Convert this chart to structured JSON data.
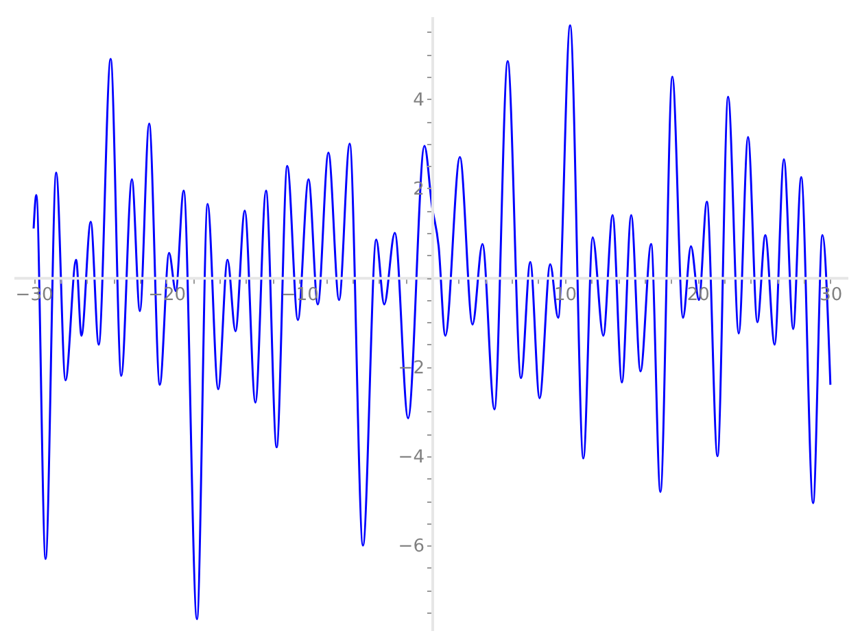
{
  "chart_data": {
    "type": "line",
    "x": [
      -30,
      -29.8,
      -29.1,
      -28.3,
      -27.6,
      -26.8,
      -26.4,
      -25.7,
      -25.1,
      -24.2,
      -23.4,
      -22.6,
      -22.0,
      -21.3,
      -20.5,
      -19.8,
      -19.3,
      -18.7,
      -17.7,
      -16.9,
      -16.1,
      -15.4,
      -14.8,
      -14.1,
      -13.3,
      -12.5,
      -11.7,
      -10.9,
      -10.1,
      -9.3,
      -8.6,
      -7.8,
      -7.0,
      -6.2,
      -5.2,
      -4.2,
      -3.6,
      -2.8,
      -1.8,
      -0.57,
      0.0,
      0.5,
      1.0,
      2.1,
      3.05,
      3.8,
      4.7,
      5.7,
      6.7,
      7.4,
      8.1,
      8.9,
      9.5,
      10.4,
      11.4,
      12.1,
      12.9,
      13.6,
      14.3,
      15.0,
      15.7,
      16.5,
      17.2,
      18.1,
      18.9,
      19.5,
      20.1,
      20.7,
      21.5,
      22.3,
      23.1,
      23.8,
      24.5,
      25.1,
      25.8,
      26.5,
      27.2,
      27.8,
      28.7,
      29.4,
      30
    ],
    "series": [
      {
        "color": "#0000ff",
        "values": [
          1.1,
          1.85,
          -6.3,
          2.35,
          -2.3,
          0.4,
          -1.3,
          1.25,
          -1.5,
          4.9,
          -2.2,
          2.2,
          -0.75,
          3.45,
          -2.4,
          0.55,
          -0.3,
          1.95,
          -7.65,
          1.65,
          -2.5,
          0.4,
          -1.2,
          1.5,
          -2.8,
          1.95,
          -3.8,
          2.5,
          -0.95,
          2.2,
          -0.6,
          2.8,
          -0.5,
          3.0,
          -6.0,
          0.85,
          -0.6,
          1.0,
          -3.15,
          2.95,
          1.6,
          0.7,
          -1.3,
          2.7,
          -1.05,
          0.75,
          -2.95,
          4.85,
          -2.25,
          0.35,
          -2.7,
          0.3,
          -0.9,
          5.65,
          -4.05,
          0.9,
          -1.3,
          1.4,
          -2.35,
          1.4,
          -2.1,
          0.75,
          -4.8,
          4.5,
          -0.9,
          0.7,
          -0.5,
          1.7,
          -4.0,
          4.05,
          -1.25,
          3.15,
          -1.0,
          0.95,
          -1.5,
          2.65,
          -1.15,
          2.25,
          -5.05,
          0.95,
          -2.4
        ]
      }
    ],
    "xlim": [
      -31.5,
      31.3
    ],
    "ylim": [
      -7.9,
      5.85
    ],
    "xticks": [
      {
        "value": -30,
        "label": "−30"
      },
      {
        "value": -28,
        "label": null
      },
      {
        "value": -26,
        "label": null
      },
      {
        "value": -24,
        "label": null
      },
      {
        "value": -22,
        "label": null
      },
      {
        "value": -20,
        "label": "−20"
      },
      {
        "value": -18,
        "label": null
      },
      {
        "value": -16,
        "label": null
      },
      {
        "value": -14,
        "label": null
      },
      {
        "value": -12,
        "label": null
      },
      {
        "value": -10,
        "label": "−10"
      },
      {
        "value": -8,
        "label": null
      },
      {
        "value": -6,
        "label": null
      },
      {
        "value": -4,
        "label": null
      },
      {
        "value": -2,
        "label": null
      },
      {
        "value": 0,
        "label": null
      },
      {
        "value": 2,
        "label": null
      },
      {
        "value": 4,
        "label": null
      },
      {
        "value": 6,
        "label": null
      },
      {
        "value": 8,
        "label": null
      },
      10,
      {
        "value": 12,
        "label": null
      },
      {
        "value": 14,
        "label": null
      },
      {
        "value": 16,
        "label": null
      },
      {
        "value": 18,
        "label": null
      },
      20,
      {
        "value": 22,
        "label": null
      },
      {
        "value": 24,
        "label": null
      },
      {
        "value": 26,
        "label": null
      },
      {
        "value": 28,
        "label": null
      },
      30
    ],
    "yticks": [
      {
        "value": -7.5,
        "label": null
      },
      {
        "value": -7,
        "label": null
      },
      {
        "value": -6.5,
        "label": null
      },
      {
        "value": -6,
        "label": "−6"
      },
      {
        "value": -5.5,
        "label": null
      },
      {
        "value": -5,
        "label": null
      },
      {
        "value": -4.5,
        "label": null
      },
      {
        "value": -4,
        "label": "−4"
      },
      {
        "value": -3.5,
        "label": null
      },
      {
        "value": -3,
        "label": null
      },
      {
        "value": -2.5,
        "label": null
      },
      {
        "value": -2,
        "label": "−2"
      },
      {
        "value": -1.5,
        "label": null
      },
      {
        "value": -1,
        "label": null
      },
      {
        "value": -0.5,
        "label": null
      },
      {
        "value": 0,
        "label": null
      },
      {
        "value": 0.5,
        "label": null
      },
      {
        "value": 1,
        "label": null
      },
      {
        "value": 1.5,
        "label": null
      },
      2,
      {
        "value": 2.5,
        "label": null
      },
      {
        "value": 3,
        "label": null
      },
      {
        "value": 3.5,
        "label": null
      },
      4,
      {
        "value": 4.5,
        "label": null
      },
      {
        "value": 5,
        "label": null
      },
      {
        "value": 5.5,
        "label": null
      }
    ],
    "grid": false,
    "marker": "none",
    "line_style": "solid"
  }
}
